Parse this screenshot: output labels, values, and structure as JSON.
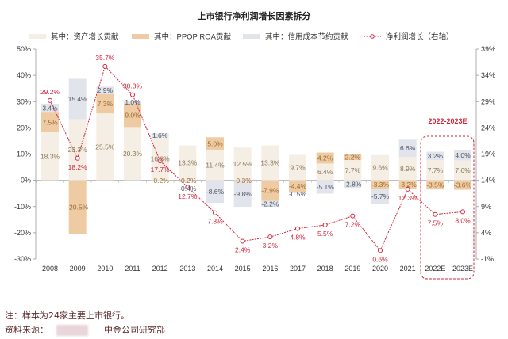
{
  "chart_data": {
    "type": "bar",
    "title": "上市银行净利润增长因素拆分",
    "categories": [
      "2008",
      "2009",
      "2010",
      "2011",
      "2012",
      "2013",
      "2014",
      "2015",
      "2016",
      "2017",
      "2018",
      "2019",
      "2020",
      "2021",
      "2022E",
      "2023E"
    ],
    "series": [
      {
        "name": "其中：资产增长贡献",
        "type": "stacked-bar",
        "axis": "left",
        "color": "#f5eee4",
        "values": [
          18.3,
          23.3,
          25.5,
          20.3,
          16.3,
          13.3,
          11.4,
          12.5,
          13.3,
          9.7,
          6.4,
          7.7,
          9.6,
          8.9,
          7.7,
          7.6
        ]
      },
      {
        "name": "其中：PPOP ROA贡献",
        "type": "stacked-bar",
        "axis": "left",
        "color": "#efcba3",
        "values": [
          7.5,
          -20.5,
          7.3,
          9.0,
          -0.2,
          -0.2,
          5.0,
          -0.3,
          -7.9,
          -4.4,
          4.2,
          2.2,
          -3.3,
          -3.2,
          -3.5,
          -3.6
        ]
      },
      {
        "name": "其中：信用成本节约贡献",
        "type": "stacked-bar",
        "axis": "left",
        "color": "#e2e4eb",
        "values": [
          3.4,
          15.4,
          2.9,
          1.0,
          1.6,
          -0.4,
          -8.6,
          -9.8,
          -2.2,
          -0.5,
          -5.1,
          -2.8,
          -5.7,
          6.6,
          3.2,
          4.0
        ]
      },
      {
        "name": "净利润增长（右轴）",
        "type": "line",
        "axis": "right",
        "color": "#d0263a",
        "values": [
          29.2,
          18.2,
          35.7,
          30.3,
          17.7,
          12.7,
          7.8,
          2.4,
          3.2,
          4.8,
          5.5,
          7.2,
          0.6,
          12.3,
          7.5,
          8.0
        ]
      }
    ],
    "left_axis": {
      "min": -30,
      "max": 50,
      "step": 10,
      "ticks": [
        "-30%",
        "-20%",
        "-10%",
        "0%",
        "10%",
        "20%",
        "30%",
        "40%",
        "50%"
      ]
    },
    "right_axis": {
      "min": -1,
      "max": 39,
      "step": 5,
      "ticks": [
        "-1%",
        "4%",
        "9%",
        "14%",
        "19%",
        "24%",
        "29%",
        "34%",
        "39%"
      ]
    },
    "legend_placement": "top",
    "grid": false,
    "annotation": "2022-2023E"
  },
  "footer": {
    "note": "注：样本为24家主要上市银行。",
    "source_label": "资料来源：",
    "source": "中金公司研究部"
  }
}
